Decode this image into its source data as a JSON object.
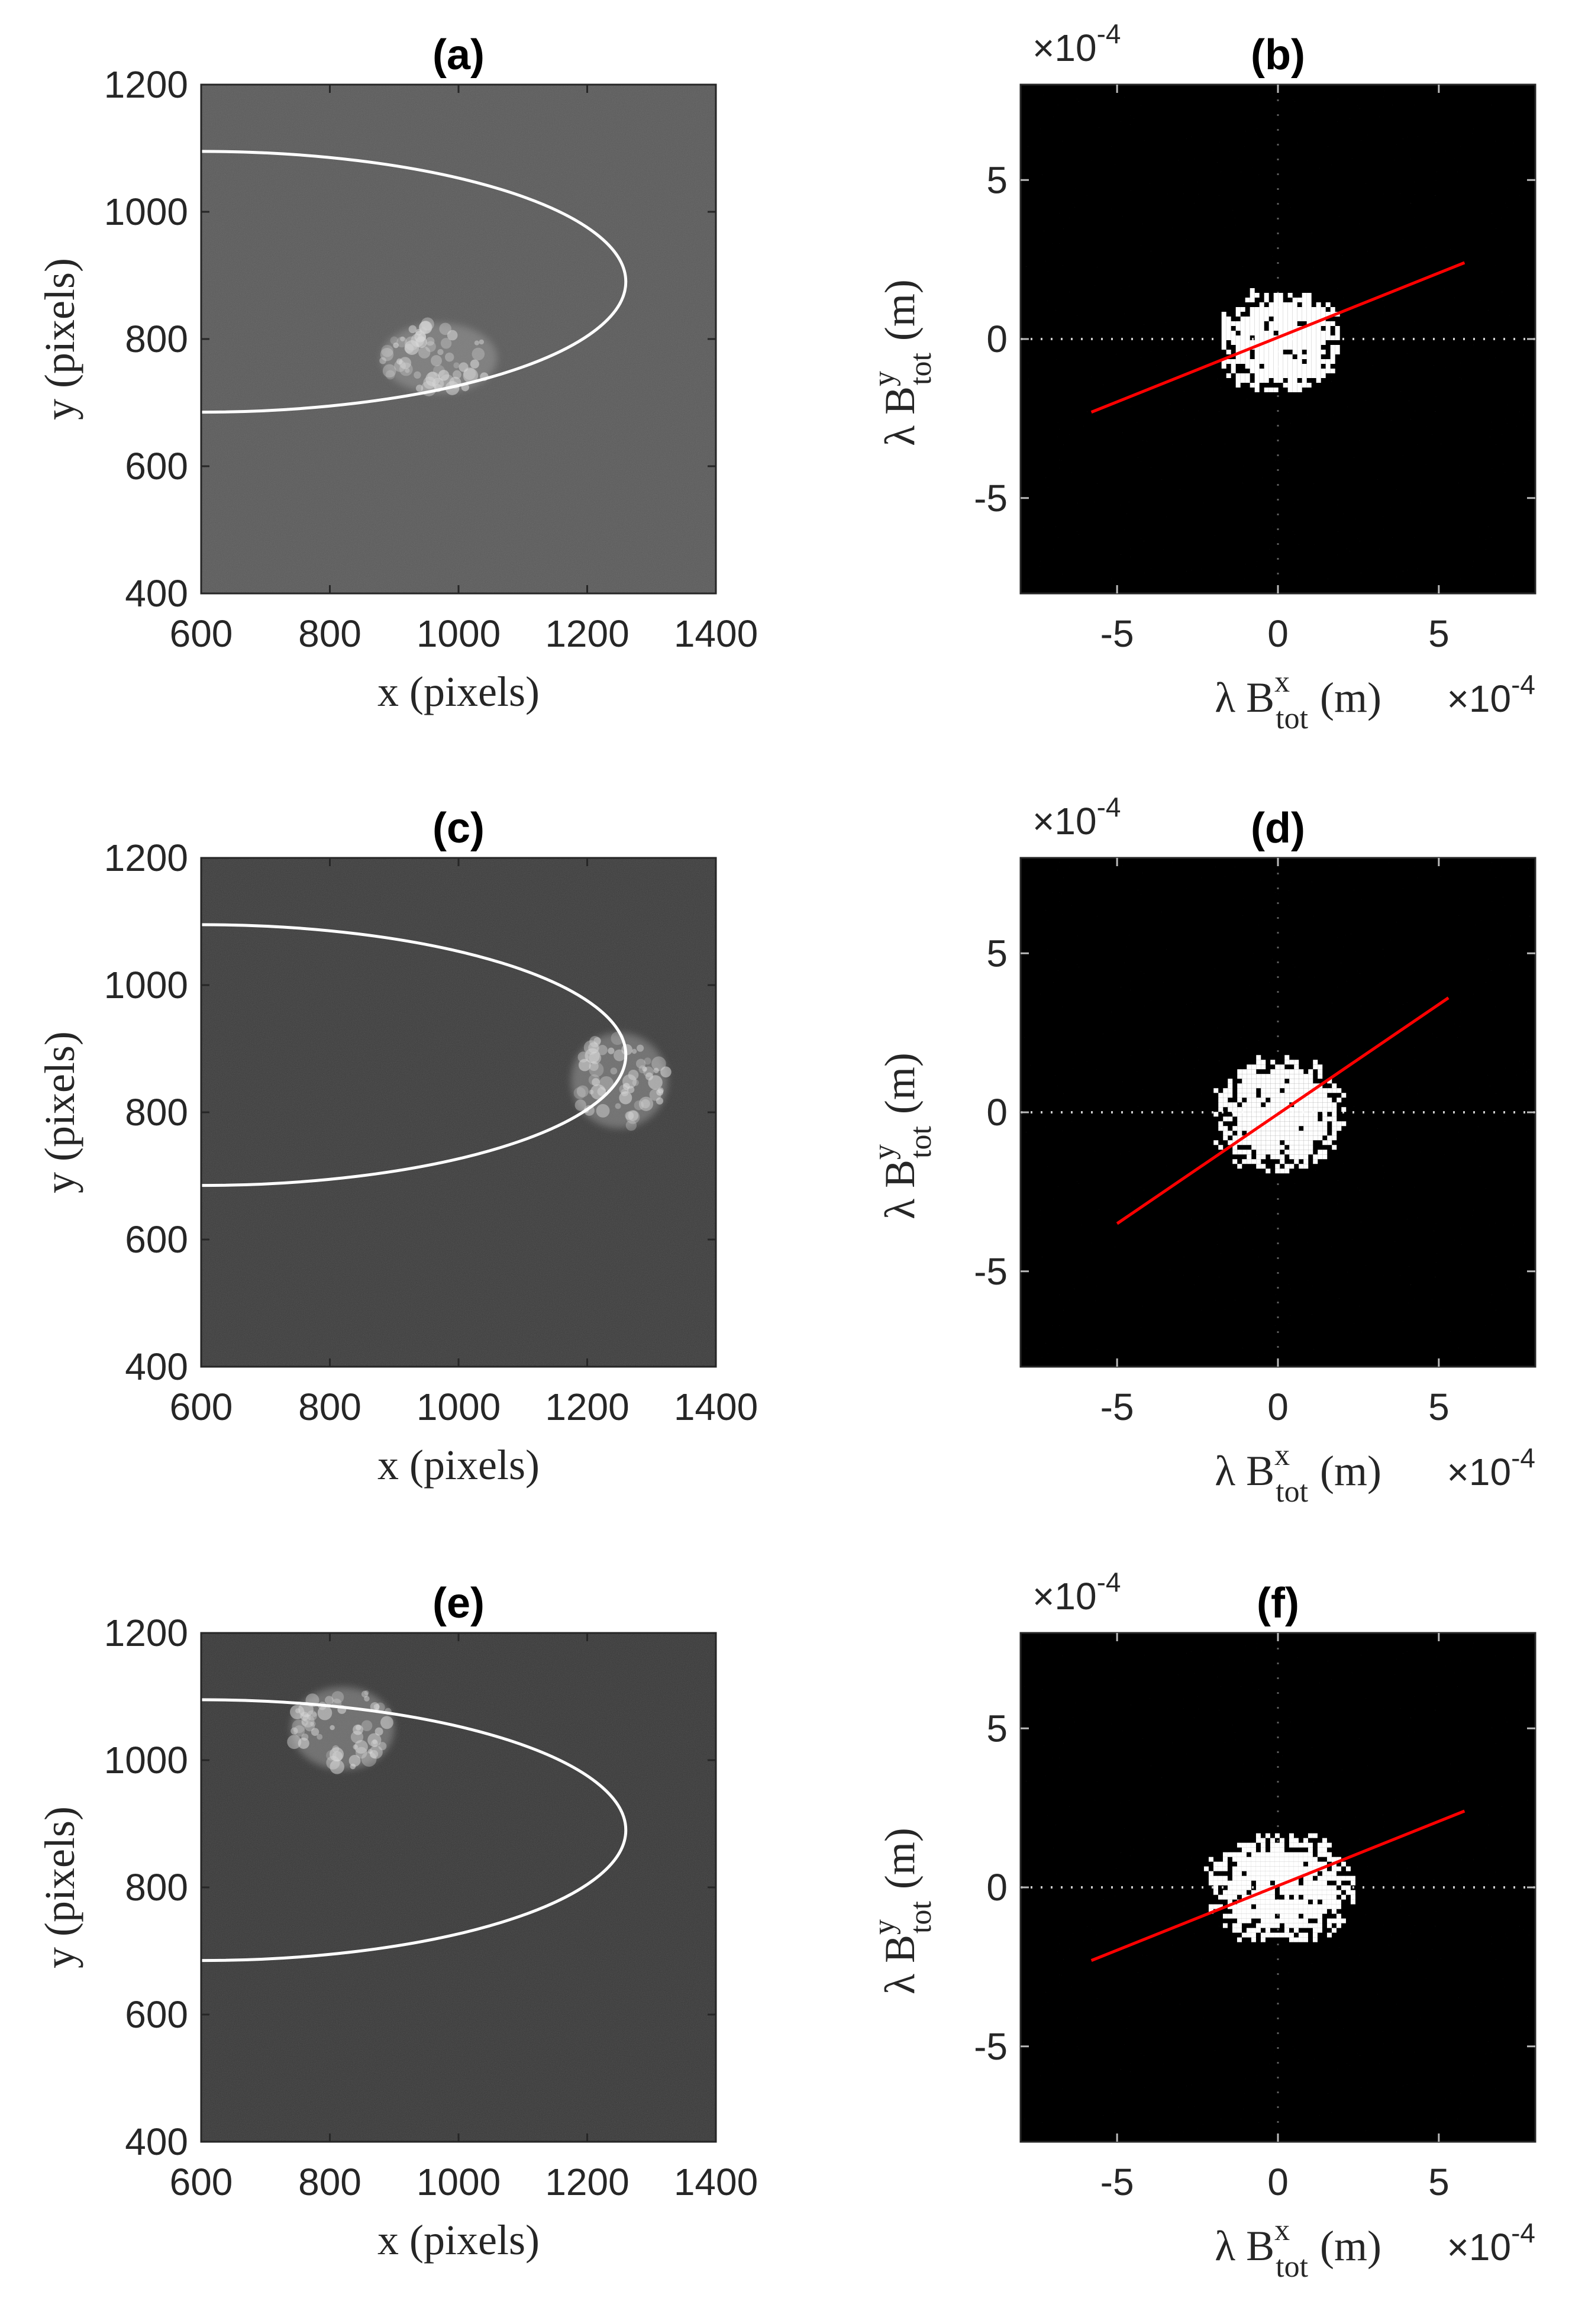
{
  "figure": {
    "background": "#ffffff",
    "line_color": "#ff0000",
    "curve_color": "#ffffff"
  },
  "chart_data": [
    {
      "id": "a",
      "type": "image",
      "title": "(a)",
      "xlabel": "x (pixels)",
      "ylabel": "y (pixels)",
      "xlim": [
        600,
        1400
      ],
      "ylim": [
        400,
        1200
      ],
      "xticks": [
        600,
        800,
        1000,
        1200,
        1400
      ],
      "yticks": [
        400,
        600,
        800,
        1000,
        1200
      ],
      "background_gray": "#5a5a5a",
      "ellipse": {
        "center": [
          600,
          890
        ],
        "semi_x": 660,
        "semi_y": 205
      },
      "spot": {
        "center": [
          970,
          770
        ],
        "rx": 90,
        "ry": 55
      }
    },
    {
      "id": "b",
      "type": "scatter",
      "title": "(b)",
      "xlabel": "λ B",
      "xlabel_sup": "x",
      "xlabel_sub": "tot",
      "xlabel_unit": "(m)",
      "ylabel": "λ B",
      "ylabel_sup": "y",
      "ylabel_sub": "tot",
      "ylabel_unit": "(m)",
      "xlim": [
        -8,
        8
      ],
      "ylim": [
        -8,
        8
      ],
      "xticks": [
        -5,
        0,
        5
      ],
      "yticks": [
        -5,
        0,
        5
      ],
      "multiplier": "×10",
      "multiplier_exp": "-4",
      "blob": {
        "center": [
          0,
          0
        ],
        "rx": 1.9,
        "ry": 1.6
      },
      "fit_line": {
        "x": [
          -5.8,
          5.8
        ],
        "y": [
          -2.3,
          2.4
        ]
      }
    },
    {
      "id": "c",
      "type": "image",
      "title": "(c)",
      "xlabel": "x (pixels)",
      "ylabel": "y (pixels)",
      "xlim": [
        600,
        1400
      ],
      "ylim": [
        400,
        1200
      ],
      "xticks": [
        600,
        800,
        1000,
        1200,
        1400
      ],
      "yticks": [
        400,
        600,
        800,
        1000,
        1200
      ],
      "background_gray": "#3c3c3c",
      "ellipse": {
        "center": [
          600,
          890
        ],
        "semi_x": 660,
        "semi_y": 205
      },
      "spot": {
        "center": [
          1250,
          850
        ],
        "rx": 75,
        "ry": 75
      }
    },
    {
      "id": "d",
      "type": "scatter",
      "title": "(d)",
      "xlabel": "λ B",
      "xlabel_sup": "x",
      "xlabel_sub": "tot",
      "xlabel_unit": "(m)",
      "ylabel": "λ B",
      "ylabel_sup": "y",
      "ylabel_sub": "tot",
      "ylabel_unit": "(m)",
      "xlim": [
        -8,
        8
      ],
      "ylim": [
        -8,
        8
      ],
      "xticks": [
        -5,
        0,
        5
      ],
      "yticks": [
        -5,
        0,
        5
      ],
      "multiplier": "×10",
      "multiplier_exp": "-4",
      "blob": {
        "center": [
          0,
          0
        ],
        "rx": 2.0,
        "ry": 1.8
      },
      "fit_line": {
        "x": [
          -5.0,
          5.3
        ],
        "y": [
          -3.5,
          3.6
        ]
      }
    },
    {
      "id": "e",
      "type": "image",
      "title": "(e)",
      "xlabel": "x (pixels)",
      "ylabel": "y (pixels)",
      "xlim": [
        600,
        1400
      ],
      "ylim": [
        400,
        1200
      ],
      "xticks": [
        600,
        800,
        1000,
        1200,
        1400
      ],
      "yticks": [
        400,
        600,
        800,
        1000,
        1200
      ],
      "background_gray": "#383838",
      "ellipse": {
        "center": [
          600,
          890
        ],
        "semi_x": 660,
        "semi_y": 205
      },
      "spot": {
        "center": [
          820,
          1050
        ],
        "rx": 80,
        "ry": 65
      }
    },
    {
      "id": "f",
      "type": "scatter",
      "title": "(f)",
      "xlabel": "λ B",
      "xlabel_sup": "x",
      "xlabel_sub": "tot",
      "xlabel_unit": "(m)",
      "ylabel": "λ B",
      "ylabel_sup": "y",
      "ylabel_sub": "tot",
      "ylabel_unit": "(m)",
      "xlim": [
        -8,
        8
      ],
      "ylim": [
        -8,
        8
      ],
      "xticks": [
        -5,
        0,
        5
      ],
      "yticks": [
        -5,
        0,
        5
      ],
      "multiplier": "×10",
      "multiplier_exp": "-4",
      "blob": {
        "center": [
          0,
          0
        ],
        "rx": 2.3,
        "ry": 1.7
      },
      "fit_line": {
        "x": [
          -5.8,
          5.8
        ],
        "y": [
          -2.3,
          2.4
        ]
      }
    }
  ]
}
